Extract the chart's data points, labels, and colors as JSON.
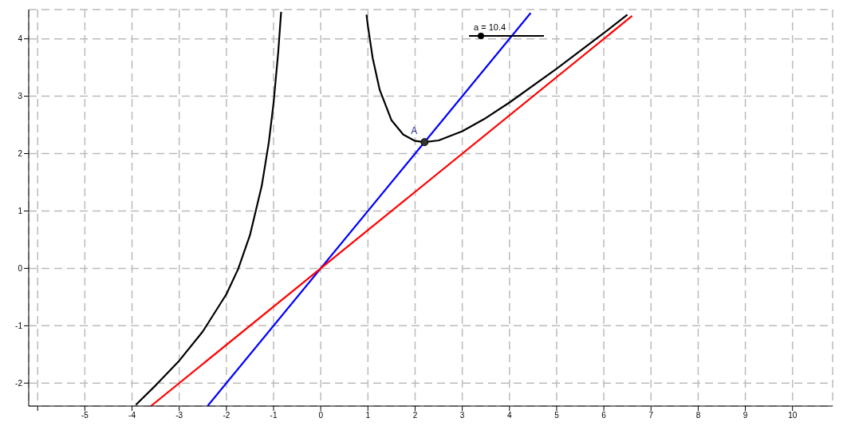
{
  "chart_data": {
    "type": "line",
    "xlim": [
      -6.19,
      10.85
    ],
    "ylim": [
      -2.4,
      4.51
    ],
    "xticks": [
      {
        "value": -6,
        "label": null
      },
      -5,
      -4,
      -3,
      -2,
      -1,
      0,
      1,
      2,
      3,
      4,
      5,
      6,
      7,
      8,
      9,
      10
    ],
    "yticks": [
      -2,
      -1,
      0,
      1,
      2,
      3,
      4
    ],
    "grid": true,
    "marker": "none",
    "line_style": "solid",
    "series": [
      {
        "color": "#000000",
        "x": [
          -3.92,
          -3.5,
          -3,
          -2.5,
          -2,
          -1.75,
          -1.5,
          -1.25,
          -1.1,
          -1,
          -0.9,
          -0.84,
          0,
          0.97,
          1,
          1.1,
          1.25,
          1.5,
          1.75,
          2,
          2.2,
          2.5,
          3,
          3.5,
          4,
          5,
          6,
          6.5
        ],
        "values": [
          -2.38,
          -2.04,
          -1.61,
          -1.1,
          -0.45,
          -0.01,
          0.58,
          1.44,
          2.2,
          2.88,
          3.78,
          4.47,
          null,
          4.42,
          4.22,
          3.67,
          3.11,
          2.58,
          2.33,
          2.22,
          2.2,
          2.23,
          2.39,
          2.62,
          2.89,
          3.48,
          4.1,
          4.42
        ]
      },
      {
        "color": "#0000ff",
        "x": [
          -2.4,
          4.45
        ],
        "values": [
          -2.4,
          4.45
        ]
      },
      {
        "color": "#ff0000",
        "x": [
          -3.6,
          6.6
        ],
        "values": [
          -2.4,
          4.4
        ]
      },
      {
        "type": "scatter",
        "marker": "circle",
        "color": "#333333",
        "x": [
          2.2
        ],
        "values": [
          2.2
        ]
      }
    ],
    "annotations": [
      {
        "text": "A",
        "x": 2.2,
        "y": 2.2
      },
      "a = 10.4"
    ]
  }
}
